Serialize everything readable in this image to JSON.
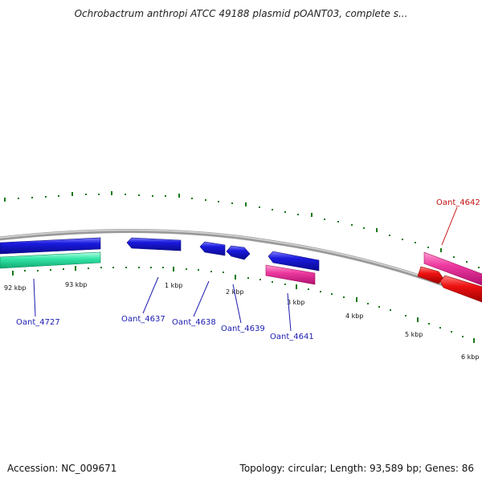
{
  "title": "Ochrobactrum anthropi ATCC 49188 plasmid pOANT03, complete s...",
  "footer": {
    "accession": "Accession: NC_009671",
    "summary": "Topology: circular; Length: 93,589 bp; Genes: 86"
  },
  "colors": {
    "backbone": "#8a8a8a",
    "gene_blue": "#1a1adf",
    "gene_magenta": "#ee3aa0",
    "gene_red": "#ee1111",
    "gene_teal": "#33e6a8",
    "tick_green": "#1a7a1a",
    "label_blue": "#1a1ab0",
    "label_red": "#c41010"
  },
  "ticks": [
    "92 kbp",
    "93 kbp",
    "1 kbp",
    "2 kbp",
    "3 kbp",
    "4 kbp",
    "5 kbp",
    "6 kbp"
  ],
  "genes": [
    "Oant_4727",
    "Oant_4637",
    "Oant_4638",
    "Oant_4639",
    "Oant_4641",
    "Oant_4642"
  ]
}
